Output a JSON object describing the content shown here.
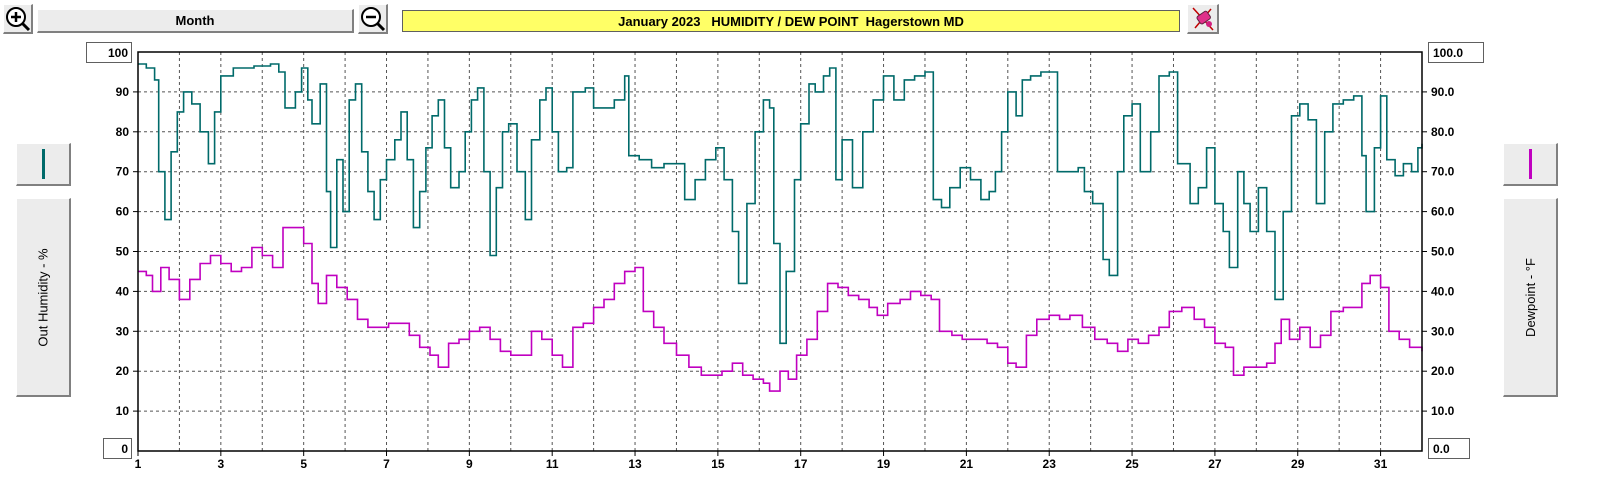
{
  "toolbar": {
    "period_label": "Month",
    "zoom_in_icon": "zoom-in-icon",
    "zoom_out_icon": "zoom-out-icon",
    "settings_icon": "paint-icon"
  },
  "colors": {
    "humidity": "#006a6a",
    "dewpoint": "#c000c0",
    "title_background": "#ffff66"
  },
  "chart_data": {
    "type": "line",
    "title": "January 2023   HUMIDITY / DEW POINT  Hagerstown MD",
    "xlabel": "",
    "ylabel_left": "Out Humidity - %",
    "ylabel_right": "Dewpoint - °F",
    "x_range": [
      1,
      32
    ],
    "x_ticks": [
      "1",
      "3",
      "5",
      "7",
      "9",
      "11",
      "13",
      "15",
      "17",
      "19",
      "21",
      "23",
      "25",
      "27",
      "29",
      "31"
    ],
    "ylim_left": [
      0,
      100
    ],
    "ylim_right": [
      0,
      100
    ],
    "y_ticks_left": [
      "10",
      "20",
      "30",
      "40",
      "50",
      "60",
      "70",
      "80",
      "90"
    ],
    "y_ticks_right": [
      "10.0",
      "20.0",
      "30.0",
      "40.0",
      "50.0",
      "60.0",
      "70.0",
      "80.0",
      "90.0"
    ],
    "y_max_left": "100",
    "y_min_left": "0",
    "y_max_right": "100.0",
    "y_min_right": "0.0",
    "grid": true,
    "series": [
      {
        "name": "Out Humidity - %",
        "axis": "left",
        "points": [
          [
            1.0,
            97
          ],
          [
            1.2,
            96
          ],
          [
            1.4,
            93
          ],
          [
            1.5,
            70
          ],
          [
            1.65,
            58
          ],
          [
            1.8,
            75
          ],
          [
            1.95,
            85
          ],
          [
            2.1,
            90
          ],
          [
            2.3,
            87
          ],
          [
            2.5,
            80
          ],
          [
            2.7,
            72
          ],
          [
            2.85,
            85
          ],
          [
            3.0,
            94
          ],
          [
            3.3,
            96
          ],
          [
            3.8,
            96.5
          ],
          [
            4.2,
            97
          ],
          [
            4.4,
            95
          ],
          [
            4.55,
            86
          ],
          [
            4.8,
            90
          ],
          [
            4.95,
            96
          ],
          [
            5.1,
            88
          ],
          [
            5.2,
            82
          ],
          [
            5.4,
            92
          ],
          [
            5.55,
            65
          ],
          [
            5.65,
            51
          ],
          [
            5.8,
            73
          ],
          [
            5.95,
            60
          ],
          [
            6.1,
            88
          ],
          [
            6.25,
            92
          ],
          [
            6.4,
            75
          ],
          [
            6.55,
            65
          ],
          [
            6.7,
            58
          ],
          [
            6.85,
            68
          ],
          [
            7.0,
            73
          ],
          [
            7.2,
            78
          ],
          [
            7.35,
            85
          ],
          [
            7.5,
            73
          ],
          [
            7.65,
            56
          ],
          [
            7.8,
            65
          ],
          [
            7.95,
            76
          ],
          [
            8.1,
            84
          ],
          [
            8.25,
            88
          ],
          [
            8.4,
            76
          ],
          [
            8.55,
            66
          ],
          [
            8.75,
            70
          ],
          [
            8.9,
            80
          ],
          [
            9.05,
            88
          ],
          [
            9.2,
            91
          ],
          [
            9.35,
            70
          ],
          [
            9.5,
            49
          ],
          [
            9.65,
            66
          ],
          [
            9.8,
            80
          ],
          [
            9.95,
            82
          ],
          [
            10.15,
            70
          ],
          [
            10.35,
            58
          ],
          [
            10.5,
            78
          ],
          [
            10.7,
            88
          ],
          [
            10.85,
            91
          ],
          [
            11.0,
            80
          ],
          [
            11.15,
            70
          ],
          [
            11.35,
            71
          ],
          [
            11.5,
            90
          ],
          [
            11.8,
            91
          ],
          [
            12.0,
            86
          ],
          [
            12.2,
            86
          ],
          [
            12.5,
            88
          ],
          [
            12.75,
            94
          ],
          [
            12.85,
            74
          ],
          [
            13.1,
            73
          ],
          [
            13.4,
            71
          ],
          [
            13.7,
            72
          ],
          [
            14.0,
            72
          ],
          [
            14.2,
            63
          ],
          [
            14.45,
            68
          ],
          [
            14.7,
            73
          ],
          [
            14.95,
            76
          ],
          [
            15.15,
            68
          ],
          [
            15.35,
            55
          ],
          [
            15.5,
            42
          ],
          [
            15.7,
            62
          ],
          [
            15.9,
            80
          ],
          [
            16.1,
            88
          ],
          [
            16.25,
            86
          ],
          [
            16.35,
            52
          ],
          [
            16.5,
            27
          ],
          [
            16.65,
            45
          ],
          [
            16.85,
            68
          ],
          [
            17.0,
            82
          ],
          [
            17.2,
            92
          ],
          [
            17.35,
            90
          ],
          [
            17.55,
            94
          ],
          [
            17.7,
            96
          ],
          [
            17.85,
            68
          ],
          [
            18.0,
            78
          ],
          [
            18.25,
            66
          ],
          [
            18.5,
            80
          ],
          [
            18.75,
            88
          ],
          [
            19.0,
            94
          ],
          [
            19.25,
            88
          ],
          [
            19.5,
            93
          ],
          [
            19.75,
            94
          ],
          [
            20.0,
            95
          ],
          [
            20.2,
            63
          ],
          [
            20.4,
            61
          ],
          [
            20.6,
            66
          ],
          [
            20.85,
            71
          ],
          [
            21.1,
            68
          ],
          [
            21.35,
            63
          ],
          [
            21.55,
            65
          ],
          [
            21.7,
            70
          ],
          [
            21.85,
            80
          ],
          [
            22.0,
            90
          ],
          [
            22.2,
            84
          ],
          [
            22.35,
            93
          ],
          [
            22.55,
            94
          ],
          [
            22.8,
            95
          ],
          [
            23.0,
            95
          ],
          [
            23.2,
            70
          ],
          [
            23.45,
            70
          ],
          [
            23.7,
            71
          ],
          [
            23.85,
            65
          ],
          [
            24.05,
            62
          ],
          [
            24.3,
            48
          ],
          [
            24.45,
            44
          ],
          [
            24.65,
            70
          ],
          [
            24.8,
            84
          ],
          [
            25.0,
            87
          ],
          [
            25.2,
            70
          ],
          [
            25.45,
            80
          ],
          [
            25.65,
            94
          ],
          [
            25.9,
            95
          ],
          [
            26.1,
            72
          ],
          [
            26.4,
            62
          ],
          [
            26.6,
            66
          ],
          [
            26.8,
            76
          ],
          [
            27.0,
            62
          ],
          [
            27.2,
            55
          ],
          [
            27.35,
            46
          ],
          [
            27.55,
            70
          ],
          [
            27.7,
            62
          ],
          [
            27.85,
            55
          ],
          [
            28.05,
            66
          ],
          [
            28.25,
            55
          ],
          [
            28.45,
            38
          ],
          [
            28.65,
            60
          ],
          [
            28.85,
            84
          ],
          [
            29.05,
            87
          ],
          [
            29.25,
            83
          ],
          [
            29.45,
            62
          ],
          [
            29.65,
            80
          ],
          [
            29.85,
            87
          ],
          [
            30.1,
            88
          ],
          [
            30.35,
            89
          ],
          [
            30.55,
            74
          ],
          [
            30.65,
            60
          ],
          [
            30.85,
            76
          ],
          [
            31.0,
            89
          ],
          [
            31.15,
            73
          ],
          [
            31.35,
            69
          ],
          [
            31.55,
            72
          ],
          [
            31.75,
            70
          ],
          [
            31.9,
            76
          ],
          [
            32.0,
            77
          ]
        ]
      },
      {
        "name": "Dewpoint - °F",
        "axis": "right",
        "points": [
          [
            1.0,
            45
          ],
          [
            1.2,
            44
          ],
          [
            1.35,
            40
          ],
          [
            1.55,
            46
          ],
          [
            1.75,
            43
          ],
          [
            2.0,
            38
          ],
          [
            2.25,
            43
          ],
          [
            2.5,
            47
          ],
          [
            2.75,
            49
          ],
          [
            3.0,
            47
          ],
          [
            3.25,
            45
          ],
          [
            3.5,
            46
          ],
          [
            3.75,
            51
          ],
          [
            4.0,
            49
          ],
          [
            4.25,
            46
          ],
          [
            4.5,
            56
          ],
          [
            4.75,
            56
          ],
          [
            5.0,
            52
          ],
          [
            5.2,
            42
          ],
          [
            5.35,
            37
          ],
          [
            5.55,
            44
          ],
          [
            5.8,
            41
          ],
          [
            6.05,
            38
          ],
          [
            6.3,
            33
          ],
          [
            6.55,
            31
          ],
          [
            6.8,
            31
          ],
          [
            7.05,
            32
          ],
          [
            7.3,
            32
          ],
          [
            7.55,
            29
          ],
          [
            7.8,
            26
          ],
          [
            8.05,
            24
          ],
          [
            8.25,
            21
          ],
          [
            8.5,
            27
          ],
          [
            8.75,
            28
          ],
          [
            9.0,
            30
          ],
          [
            9.25,
            31
          ],
          [
            9.5,
            28
          ],
          [
            9.75,
            25
          ],
          [
            10.0,
            24
          ],
          [
            10.25,
            24
          ],
          [
            10.5,
            30
          ],
          [
            10.75,
            28
          ],
          [
            11.0,
            24
          ],
          [
            11.25,
            21
          ],
          [
            11.5,
            31
          ],
          [
            11.75,
            32
          ],
          [
            12.0,
            36
          ],
          [
            12.25,
            38
          ],
          [
            12.5,
            42
          ],
          [
            12.75,
            45
          ],
          [
            13.0,
            46
          ],
          [
            13.2,
            35
          ],
          [
            13.45,
            31
          ],
          [
            13.7,
            27
          ],
          [
            14.0,
            24
          ],
          [
            14.3,
            21
          ],
          [
            14.6,
            19
          ],
          [
            14.85,
            19
          ],
          [
            15.1,
            20
          ],
          [
            15.35,
            22
          ],
          [
            15.6,
            19
          ],
          [
            15.85,
            18
          ],
          [
            16.1,
            17
          ],
          [
            16.25,
            15
          ],
          [
            16.5,
            20
          ],
          [
            16.7,
            18
          ],
          [
            16.9,
            24
          ],
          [
            17.15,
            28
          ],
          [
            17.4,
            35
          ],
          [
            17.65,
            42
          ],
          [
            17.9,
            41
          ],
          [
            18.15,
            39
          ],
          [
            18.4,
            38
          ],
          [
            18.65,
            36
          ],
          [
            18.85,
            34
          ],
          [
            19.1,
            37
          ],
          [
            19.4,
            38
          ],
          [
            19.65,
            40
          ],
          [
            19.9,
            39
          ],
          [
            20.15,
            38
          ],
          [
            20.35,
            30
          ],
          [
            20.65,
            29
          ],
          [
            20.9,
            28
          ],
          [
            21.2,
            28
          ],
          [
            21.5,
            27
          ],
          [
            21.75,
            26
          ],
          [
            22.0,
            22
          ],
          [
            22.2,
            21
          ],
          [
            22.45,
            29
          ],
          [
            22.7,
            33
          ],
          [
            23.0,
            34
          ],
          [
            23.25,
            33
          ],
          [
            23.5,
            34
          ],
          [
            23.8,
            31
          ],
          [
            24.1,
            28
          ],
          [
            24.4,
            27
          ],
          [
            24.65,
            25
          ],
          [
            24.9,
            28
          ],
          [
            25.15,
            27
          ],
          [
            25.4,
            29
          ],
          [
            25.65,
            31
          ],
          [
            25.9,
            35
          ],
          [
            26.2,
            36
          ],
          [
            26.5,
            33
          ],
          [
            26.75,
            31
          ],
          [
            27.0,
            27
          ],
          [
            27.25,
            26
          ],
          [
            27.45,
            19
          ],
          [
            27.7,
            21
          ],
          [
            28.0,
            21
          ],
          [
            28.25,
            22
          ],
          [
            28.45,
            27
          ],
          [
            28.6,
            33
          ],
          [
            28.8,
            28
          ],
          [
            29.05,
            31
          ],
          [
            29.3,
            26
          ],
          [
            29.55,
            29
          ],
          [
            29.8,
            35
          ],
          [
            30.1,
            36
          ],
          [
            30.35,
            36
          ],
          [
            30.55,
            42
          ],
          [
            30.75,
            44
          ],
          [
            31.0,
            41
          ],
          [
            31.2,
            30
          ],
          [
            31.45,
            28
          ],
          [
            31.7,
            26
          ],
          [
            32.0,
            25
          ]
        ]
      }
    ]
  }
}
